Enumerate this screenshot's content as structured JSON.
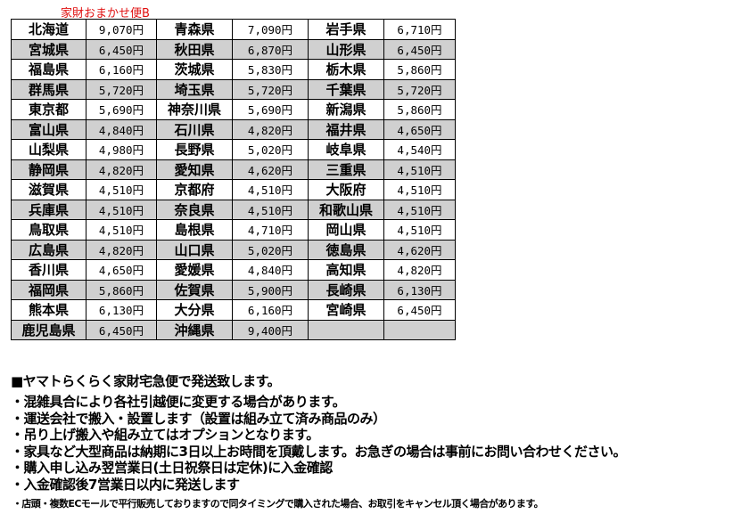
{
  "title": "家財おまかせ便B",
  "rows": [
    [
      [
        "北海道",
        "9,070円"
      ],
      [
        "青森県",
        "7,090円"
      ],
      [
        "岩手県",
        "6,710円"
      ]
    ],
    [
      [
        "宮城県",
        "6,450円"
      ],
      [
        "秋田県",
        "6,870円"
      ],
      [
        "山形県",
        "6,450円"
      ]
    ],
    [
      [
        "福島県",
        "6,160円"
      ],
      [
        "茨城県",
        "5,830円"
      ],
      [
        "栃木県",
        "5,860円"
      ]
    ],
    [
      [
        "群馬県",
        "5,720円"
      ],
      [
        "埼玉県",
        "5,720円"
      ],
      [
        "千葉県",
        "5,720円"
      ]
    ],
    [
      [
        "東京都",
        "5,690円"
      ],
      [
        "神奈川県",
        "5,690円"
      ],
      [
        "新潟県",
        "5,860円"
      ]
    ],
    [
      [
        "富山県",
        "4,840円"
      ],
      [
        "石川県",
        "4,820円"
      ],
      [
        "福井県",
        "4,650円"
      ]
    ],
    [
      [
        "山梨県",
        "4,980円"
      ],
      [
        "長野県",
        "5,020円"
      ],
      [
        "岐阜県",
        "4,540円"
      ]
    ],
    [
      [
        "静岡県",
        "4,820円"
      ],
      [
        "愛知県",
        "4,620円"
      ],
      [
        "三重県",
        "4,510円"
      ]
    ],
    [
      [
        "滋賀県",
        "4,510円"
      ],
      [
        "京都府",
        "4,510円"
      ],
      [
        "大阪府",
        "4,510円"
      ]
    ],
    [
      [
        "兵庫県",
        "4,510円"
      ],
      [
        "奈良県",
        "4,510円"
      ],
      [
        "和歌山県",
        "4,510円"
      ]
    ],
    [
      [
        "鳥取県",
        "4,510円"
      ],
      [
        "島根県",
        "4,710円"
      ],
      [
        "岡山県",
        "4,510円"
      ]
    ],
    [
      [
        "広島県",
        "4,820円"
      ],
      [
        "山口県",
        "5,020円"
      ],
      [
        "徳島県",
        "4,620円"
      ]
    ],
    [
      [
        "香川県",
        "4,650円"
      ],
      [
        "愛媛県",
        "4,840円"
      ],
      [
        "高知県",
        "4,820円"
      ]
    ],
    [
      [
        "福岡県",
        "5,860円"
      ],
      [
        "佐賀県",
        "5,900円"
      ],
      [
        "長崎県",
        "6,130円"
      ]
    ],
    [
      [
        "熊本県",
        "6,130円"
      ],
      [
        "大分県",
        "6,160円"
      ],
      [
        "宮崎県",
        "6,450円"
      ]
    ],
    [
      [
        "鹿児島県",
        "6,450円"
      ],
      [
        "沖縄県",
        "9,400円"
      ],
      [
        "",
        ""
      ]
    ]
  ],
  "heading": "■ヤマトらくらく家財宅急便で発送致します。",
  "notes": [
    "・混雑具合により各社引越便に変更する場合があります。",
    "・運送会社で搬入・設置します（設置は組み立て済み商品のみ）",
    "・吊り上げ搬入や組み立てはオプションとなります。",
    "・家具など大型商品は納期に3日以上お時間を頂戴します。お急ぎの場合は事前にお問い合わせください。",
    "・購入申し込み翌営業日(土日祝祭日は定休)に入金確認",
    "・入金確認後7営業日以内に発送します"
  ],
  "small_note": "・店頭・複数ECモールで平行販売しておりますので同タイミングで購入された場合、お取引をキャンセル頂く場合があります。",
  "colors": {
    "title": "#e01010",
    "stripe": "#d0d0d0"
  }
}
